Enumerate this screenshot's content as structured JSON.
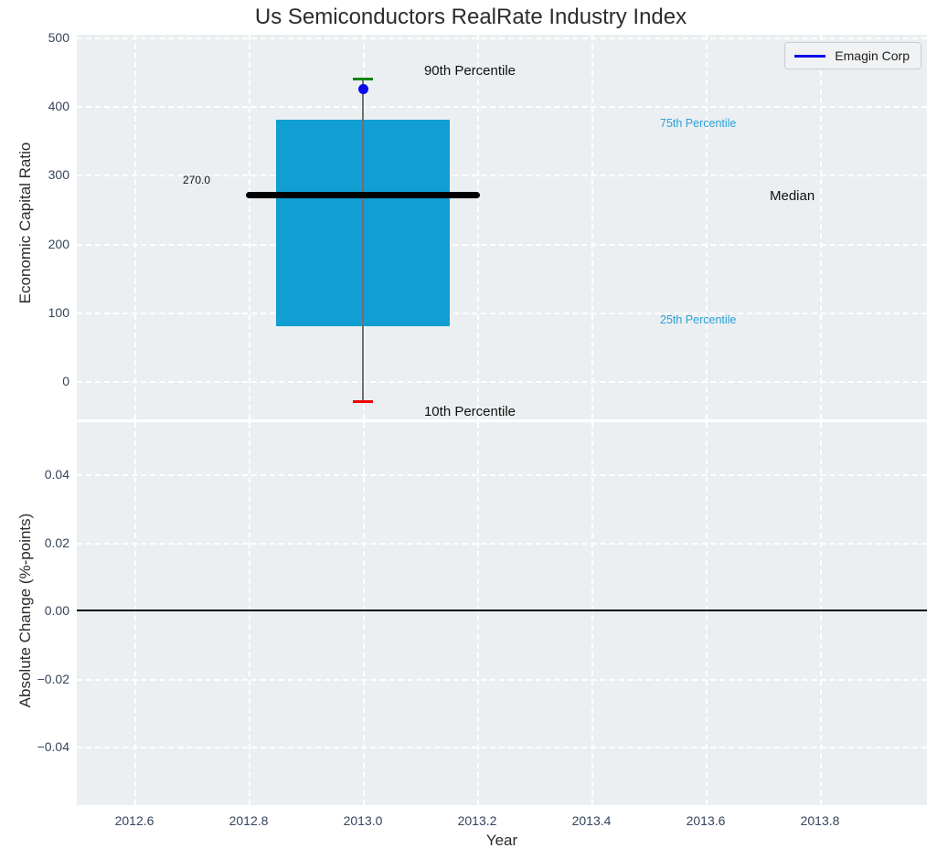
{
  "title": "Us Semiconductors RealRate Industry Index",
  "legend": {
    "label": "Emagin Corp"
  },
  "axes": {
    "top": {
      "ylabel": "Economic Capital Ratio",
      "yticks": [
        {
          "v": 500,
          "label": "500"
        },
        {
          "v": 400,
          "label": "400"
        },
        {
          "v": 300,
          "label": "300"
        },
        {
          "v": 200,
          "label": "200"
        },
        {
          "v": 100,
          "label": "100"
        },
        {
          "v": 0,
          "label": "0"
        }
      ]
    },
    "bottom": {
      "ylabel": "Absolute Change (%-points)",
      "xlabel": "Year",
      "yticks": [
        {
          "v": 0.04,
          "label": "0.04"
        },
        {
          "v": 0.02,
          "label": "0.02"
        },
        {
          "v": 0.0,
          "label": "0.00"
        },
        {
          "v": -0.02,
          "label": "−0.02"
        },
        {
          "v": -0.04,
          "label": "−0.04"
        }
      ],
      "xticks": [
        {
          "v": 2012.6,
          "label": "2012.6"
        },
        {
          "v": 2012.8,
          "label": "2012.8"
        },
        {
          "v": 2013.0,
          "label": "2013.0"
        },
        {
          "v": 2013.2,
          "label": "2013.2"
        },
        {
          "v": 2013.4,
          "label": "2013.4"
        },
        {
          "v": 2013.6,
          "label": "2013.6"
        },
        {
          "v": 2013.8,
          "label": "2013.8"
        }
      ]
    }
  },
  "annotations": {
    "p90": "90th Percentile",
    "p75": "75th Percentile",
    "median": "Median",
    "p25": "25th Percentile",
    "p10": "10th Percentile",
    "median_value": "270.0"
  },
  "colors": {
    "box_fill": "#109ed3",
    "median": "#000000",
    "whisker": "#707070",
    "cap_90": "#0a8510",
    "cap_10": "#ee0000",
    "company_point": "#0a0ae8",
    "percentile_label": "#2aa1d6",
    "axes_bg": "#eceff1",
    "grid": "#ffffff",
    "tick_label": "#35455c"
  },
  "chart_data": [
    {
      "type": "boxplot",
      "title": "Us Semiconductors RealRate Industry Index",
      "ylabel": "Economic Capital Ratio",
      "xlabel": "Year",
      "x": 2013.0,
      "xlim": [
        2012.5,
        2014.0
      ],
      "ylim": [
        -55,
        500
      ],
      "yticks": [
        0,
        100,
        200,
        300,
        400,
        500
      ],
      "xticks": [
        2012.6,
        2012.8,
        2013.0,
        2013.2,
        2013.4,
        2013.6,
        2013.8
      ],
      "grid": true,
      "legend_position": "upper right",
      "box": {
        "p10": -30,
        "p25": 80,
        "median": 270.0,
        "p75": 380,
        "p90": 440
      },
      "median_label": "270.0",
      "series": [
        {
          "name": "Emagin Corp",
          "type": "scatter",
          "x": [
            2013.0
          ],
          "y": [
            425
          ]
        }
      ],
      "annotations": [
        "90th Percentile",
        "75th Percentile",
        "Median",
        "25th Percentile",
        "10th Percentile",
        "270.0"
      ]
    },
    {
      "type": "line",
      "ylabel": "Absolute Change (%-points)",
      "xlabel": "Year",
      "xlim": [
        2012.5,
        2014.0
      ],
      "ylim": [
        -0.057,
        0.056
      ],
      "yticks": [
        -0.04,
        -0.02,
        0.0,
        0.02,
        0.04
      ],
      "xticks": [
        2012.6,
        2012.8,
        2013.0,
        2013.2,
        2013.4,
        2013.6,
        2013.8
      ],
      "grid": true,
      "zero_line": 0.0,
      "series": []
    }
  ]
}
